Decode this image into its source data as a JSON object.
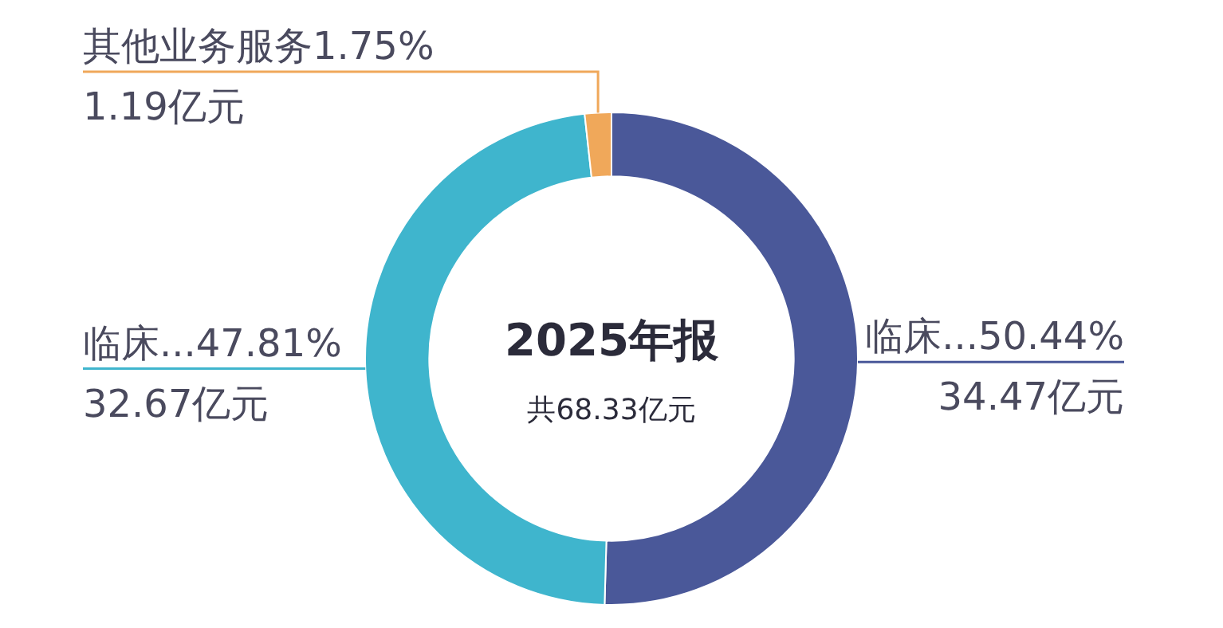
{
  "chart_data": {
    "type": "donut",
    "title": "2025年报",
    "subtitle": "共68.33亿元",
    "categories": [
      "临床...",
      "临床...",
      "其他业务服务"
    ],
    "values": [
      34.47,
      32.67,
      1.19
    ],
    "value_labels": [
      "50.44%\n34.47亿元",
      "47.81%\n32.67亿元",
      "1.75%\n1.19亿元"
    ],
    "colors": [
      "#4a5899",
      "#3fb5cd",
      "#f0a85a"
    ],
    "legend": false
  }
}
